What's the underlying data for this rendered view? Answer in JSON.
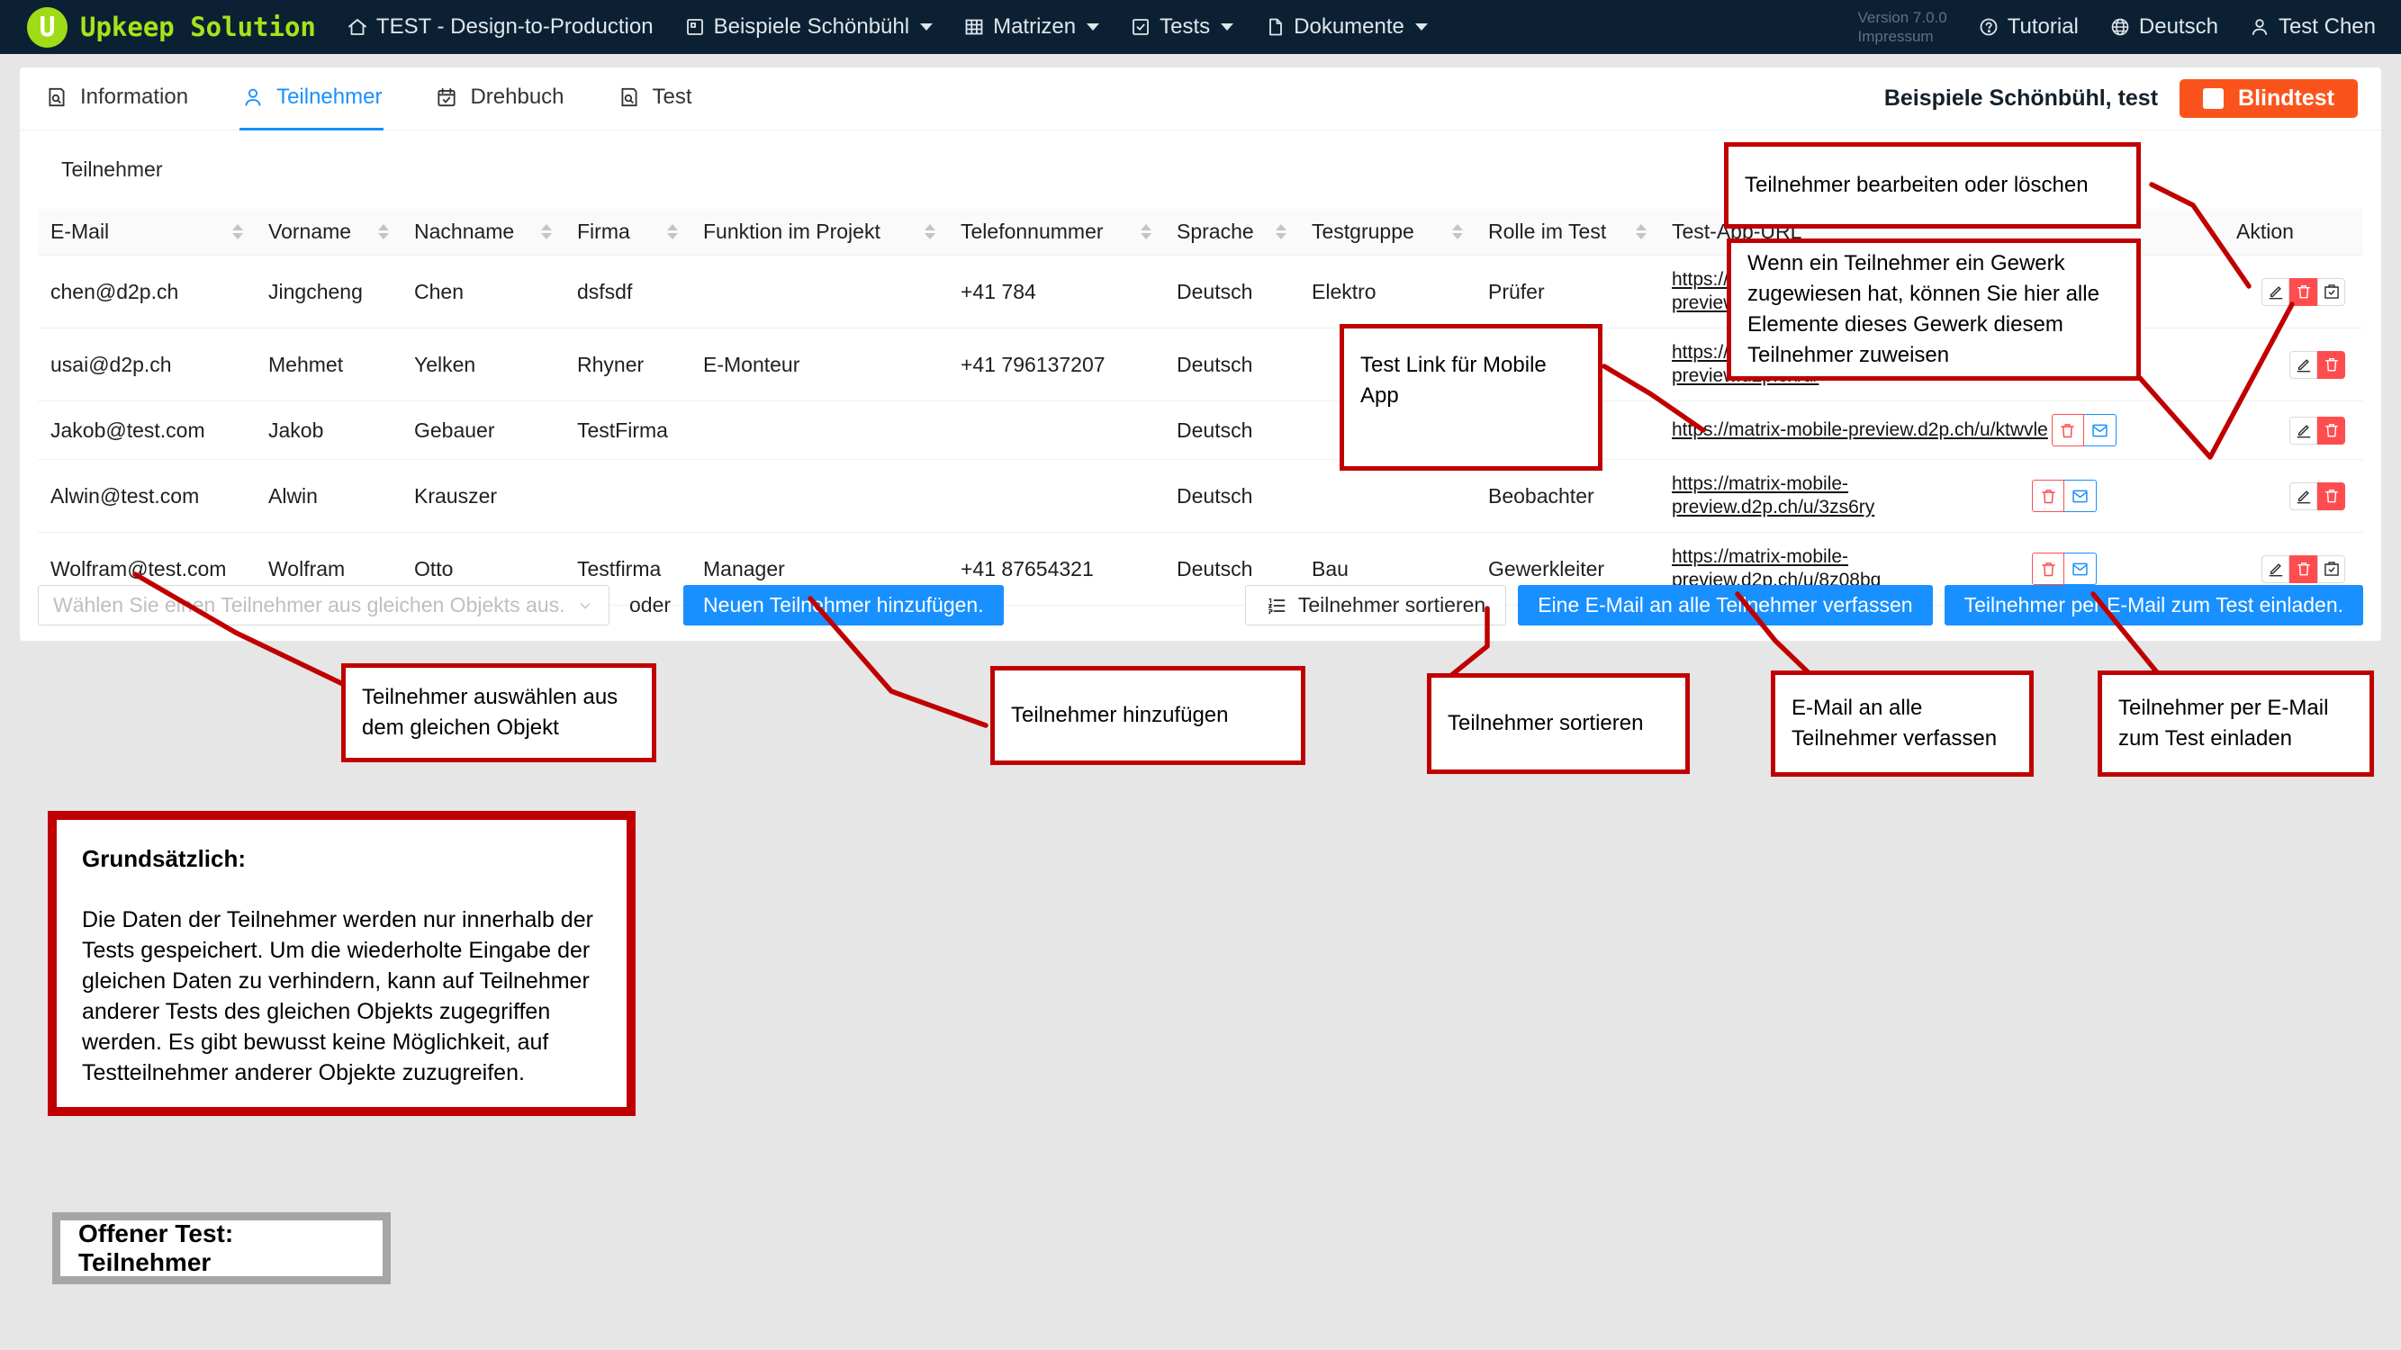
{
  "colors": {
    "accent": "#1890ff",
    "danger": "#ff4d4f",
    "blindtest_orange": "#fa541c",
    "annotation_red": "#c00000",
    "navbar_bg": "#0b2133",
    "logo_green": "#9fdc17"
  },
  "navbar": {
    "brand": "Upkeep Solution",
    "items": [
      {
        "label": "TEST - Design-to-Production",
        "icon": "home-icon"
      },
      {
        "label": "Beispiele Schönbühl",
        "icon": "preview-icon"
      },
      {
        "label": "Matrizen",
        "icon": "table-icon"
      },
      {
        "label": "Tests",
        "icon": "check-square-icon"
      },
      {
        "label": "Dokumente",
        "icon": "document-icon"
      }
    ],
    "version": "Version 7.0.0",
    "impressum": "Impressum",
    "tutorial": "Tutorial",
    "language": "Deutsch",
    "user": "Test Chen"
  },
  "tabs": [
    {
      "label": "Information",
      "active": false
    },
    {
      "label": "Teilnehmer",
      "active": true
    },
    {
      "label": "Drehbuch",
      "active": false
    },
    {
      "label": "Test",
      "active": false
    }
  ],
  "header_bar": {
    "object_label": "Beispiele Schönbühl, test",
    "blindtest_label": "Blindtest"
  },
  "section_title": "Teilnehmer",
  "table": {
    "columns": [
      {
        "key": "email",
        "label": "E-Mail",
        "sortable": true
      },
      {
        "key": "vorname",
        "label": "Vorname",
        "sortable": true
      },
      {
        "key": "nachname",
        "label": "Nachname",
        "sortable": true
      },
      {
        "key": "firma",
        "label": "Firma",
        "sortable": true
      },
      {
        "key": "funktion",
        "label": "Funktion im Projekt",
        "sortable": true
      },
      {
        "key": "telefon",
        "label": "Telefonnummer",
        "sortable": true
      },
      {
        "key": "sprache",
        "label": "Sprache",
        "sortable": true
      },
      {
        "key": "testgruppe",
        "label": "Testgruppe",
        "sortable": true
      },
      {
        "key": "rolle",
        "label": "Rolle im Test",
        "sortable": true
      },
      {
        "key": "url",
        "label": "Test-App-URL",
        "sortable": false
      },
      {
        "key": "aktion",
        "label": "Aktion",
        "sortable": false
      }
    ],
    "rows": [
      {
        "email": "chen@d2p.ch",
        "vorname": "Jingcheng",
        "nachname": "Chen",
        "firma": "dsfsdf",
        "funktion": "",
        "telefon": "+41 784",
        "sprache": "Deutsch",
        "testgruppe": "Elektro",
        "rolle": "Prüfer",
        "url_lines": [
          "https://matrix-mobile-",
          "preview.d2p.ch/u/"
        ],
        "actions": [
          "edit",
          "delete",
          "assign"
        ]
      },
      {
        "email": "usai@d2p.ch",
        "vorname": "Mehmet",
        "nachname": "Yelken",
        "firma": "Rhyner",
        "funktion": "E-Monteur",
        "telefon": "+41 796137207",
        "sprache": "Deutsch",
        "testgruppe": "",
        "rolle": "",
        "url_lines": [
          "https://matrix-mobile-",
          "preview.d2p.ch/u/"
        ],
        "actions": [
          "edit",
          "delete"
        ]
      },
      {
        "email": "Jakob@test.com",
        "vorname": "Jakob",
        "nachname": "Gebauer",
        "firma": "TestFirma",
        "funktion": "",
        "telefon": "",
        "sprache": "Deutsch",
        "testgruppe": "",
        "rolle": "",
        "url_lines": [
          "https://matrix-mobile-preview.d2p.ch/u/ktwvle"
        ],
        "actions": [
          "edit",
          "delete"
        ]
      },
      {
        "email": "Alwin@test.com",
        "vorname": "Alwin",
        "nachname": "Krauszer",
        "firma": "",
        "funktion": "",
        "telefon": "",
        "sprache": "Deutsch",
        "testgruppe": "",
        "rolle": "Beobachter",
        "url_lines": [
          "https://matrix-mobile-",
          "preview.d2p.ch/u/3zs6ry"
        ],
        "actions": [
          "edit",
          "delete"
        ]
      },
      {
        "email": "Wolfram@test.com",
        "vorname": "Wolfram",
        "nachname": "Otto",
        "firma": "Testfirma",
        "funktion": "Manager",
        "telefon": "+41 87654321",
        "sprache": "Deutsch",
        "testgruppe": "Bau",
        "rolle": "Gewerkleiter",
        "url_lines": [
          "https://matrix-mobile-",
          "preview.d2p.ch/u/8z08bq"
        ],
        "actions": [
          "edit",
          "delete",
          "assign"
        ]
      }
    ]
  },
  "controls": {
    "select_placeholder": "Wählen Sie einen Teilnehmer aus gleichen Objekts aus.",
    "oder_label": "oder",
    "add_button": "Neuen Teilnehmer hinzufügen.",
    "sort_button": "Teilnehmer sortieren",
    "email_all_button": "Eine E-Mail an alle Teilnehmer verfassen",
    "invite_button": "Teilnehmer per E-Mail zum Test einladen."
  },
  "annotations": {
    "edit_delete": "Teilnehmer bearbeiten oder löschen",
    "gewerk": "Wenn ein Teilnehmer ein Gewerk zugewiesen hat, können Sie hier alle Elemente dieses Gewerk diesem Teilnehmer zuweisen",
    "mobile_link": "Test Link für Mobile App",
    "select_participant": "Teilnehmer auswählen aus dem gleichen Objekt",
    "add_participant": "Teilnehmer hinzufügen",
    "sort_participants": "Teilnehmer sortieren",
    "email_all": "E-Mail an alle Teilnehmer verfassen",
    "invite": "Teilnehmer per E-Mail zum Test einladen",
    "note_title": "Grundsätzlich:",
    "note_body": "Die Daten der Teilnehmer werden nur innerhalb der Tests gespeichert. Um die wiederholte Eingabe der gleichen Daten zu verhindern, kann auf Teilnehmer anderer Tests des gleichen Objekts zugegriffen werden. Es gibt bewusst keine Möglichkeit, auf Testteilnehmer anderer Objekte zuzugreifen.",
    "footer": "Offener Test: Teilnehmer"
  }
}
